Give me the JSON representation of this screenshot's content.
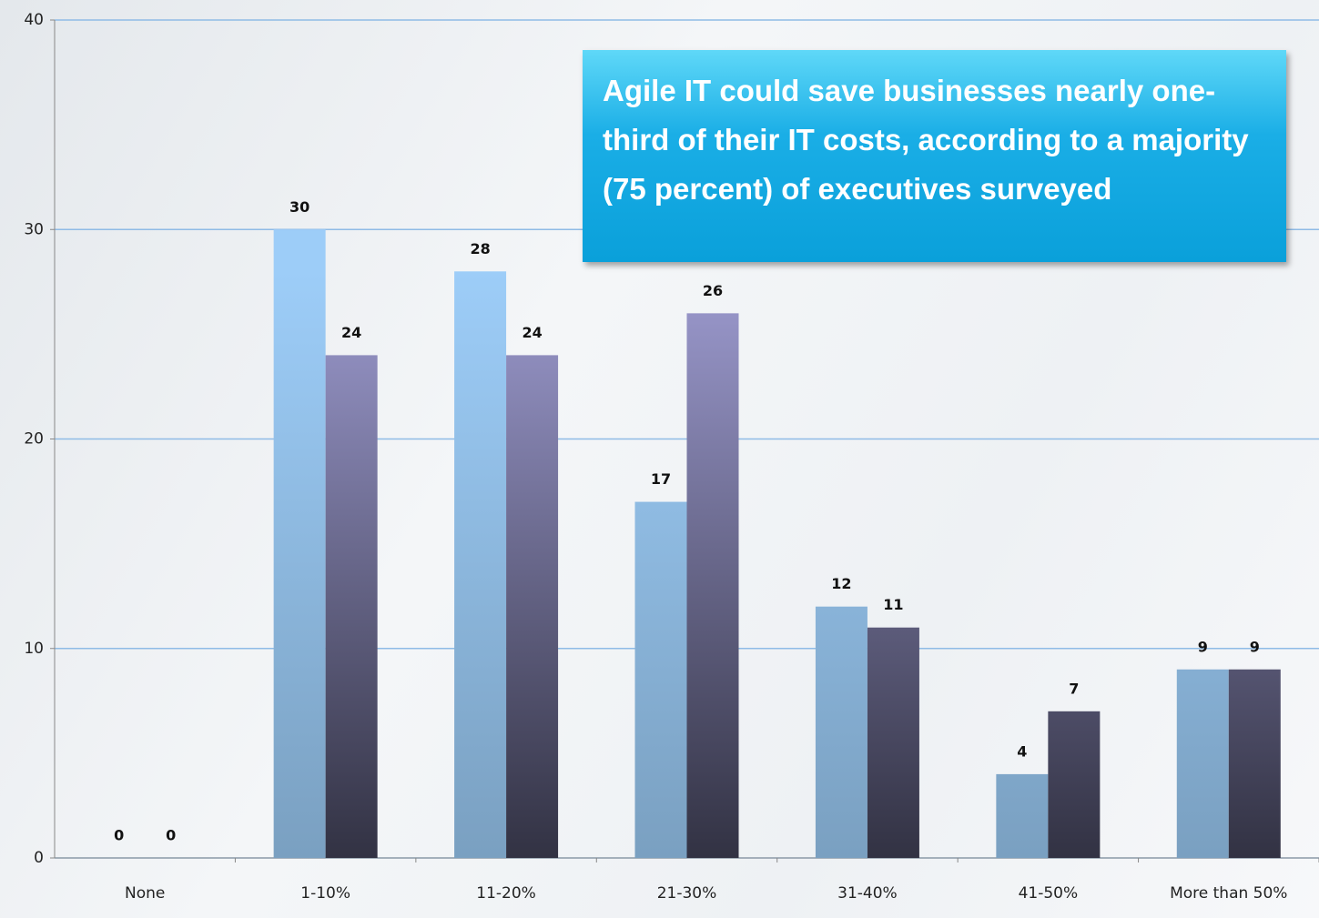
{
  "chart_data": {
    "type": "bar",
    "annotation": "Agile IT could save businesses nearly one-third of their IT costs, according to a majority (75 percent) of executives surveyed",
    "categories": [
      "None",
      "1-10%",
      "11-20%",
      "21-30%",
      "31-40%",
      "41-50%",
      "More than 50%"
    ],
    "series": [
      {
        "color": "#9dcdf8",
        "values": [
          0,
          30,
          28,
          17,
          12,
          4,
          9
        ]
      },
      {
        "color": "#9d9bd0",
        "values": [
          0,
          24,
          24,
          26,
          11,
          7,
          9
        ]
      }
    ],
    "ylim": [
      0,
      40
    ],
    "yticks": [
      0,
      10,
      20,
      30,
      40
    ],
    "grid": true
  }
}
